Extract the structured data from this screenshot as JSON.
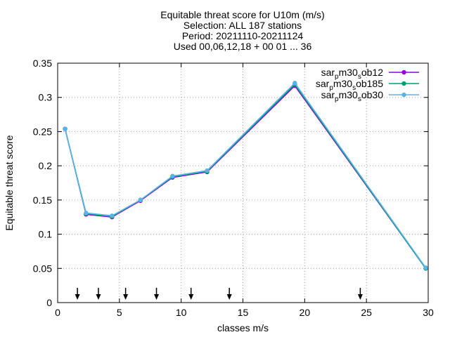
{
  "chart_data": {
    "type": "line",
    "title_lines": [
      "Equitable threat score  for U10m (m/s)",
      "Selection: ALL    187 stations",
      "Period: 20211110-20211124",
      "Used 00,06,12,18 + 00 01 ... 36"
    ],
    "xlabel": "classes m/s",
    "ylabel": "Equitable threat score",
    "xlim": [
      0,
      30
    ],
    "ylim": [
      0,
      0.35
    ],
    "xticks": [
      0,
      5,
      10,
      15,
      20,
      25,
      30
    ],
    "xtick_labels": [
      "0",
      "5",
      "10",
      "15",
      "20",
      "25",
      "30"
    ],
    "yticks": [
      0,
      0.05,
      0.1,
      0.15,
      0.2,
      0.25,
      0.3,
      0.35
    ],
    "ytick_labels": [
      "0",
      "0.05",
      "0.1",
      "0.15",
      "0.2",
      "0.25",
      "0.3",
      "0.35"
    ],
    "grid": true,
    "legend_position": "top-right",
    "class_arrows_x": [
      1.6,
      3.3,
      5.5,
      8.0,
      10.8,
      13.9,
      24.5
    ],
    "series": [
      {
        "name": "sar_p m30_s ob12",
        "label_parts": [
          {
            "text": "sar",
            "sub": false
          },
          {
            "text": "p",
            "sub": true
          },
          {
            "text": "m30",
            "sub": false
          },
          {
            "text": "s",
            "sub": true
          },
          {
            "text": "ob12",
            "sub": false
          }
        ],
        "color": "#9400d3",
        "x": [
          0.6,
          2.3,
          4.4,
          6.7,
          9.3,
          12.1,
          19.2,
          29.8
        ],
        "y": [
          0.254,
          0.129,
          0.125,
          0.149,
          0.183,
          0.191,
          0.317,
          0.05
        ]
      },
      {
        "name": "sar_p m30_s ob185",
        "label_parts": [
          {
            "text": "sar",
            "sub": false
          },
          {
            "text": "p",
            "sub": true
          },
          {
            "text": "m30",
            "sub": false
          },
          {
            "text": "s",
            "sub": true
          },
          {
            "text": "ob185",
            "sub": false
          }
        ],
        "color": "#009e73",
        "x": [
          0.6,
          2.3,
          4.4,
          6.7,
          9.3,
          12.1,
          19.2,
          29.8
        ],
        "y": [
          0.254,
          0.13,
          0.126,
          0.15,
          0.184,
          0.192,
          0.319,
          0.05
        ]
      },
      {
        "name": "sar_p m30_s ob30",
        "label_parts": [
          {
            "text": "sar",
            "sub": false
          },
          {
            "text": "p",
            "sub": true
          },
          {
            "text": "m30",
            "sub": false
          },
          {
            "text": "s",
            "sub": true
          },
          {
            "text": "ob30",
            "sub": false
          }
        ],
        "color": "#56b4e9",
        "x": [
          0.6,
          2.3,
          4.4,
          6.7,
          9.3,
          12.1,
          19.2,
          29.8
        ],
        "y": [
          0.254,
          0.131,
          0.127,
          0.15,
          0.185,
          0.193,
          0.321,
          0.051
        ]
      }
    ]
  }
}
